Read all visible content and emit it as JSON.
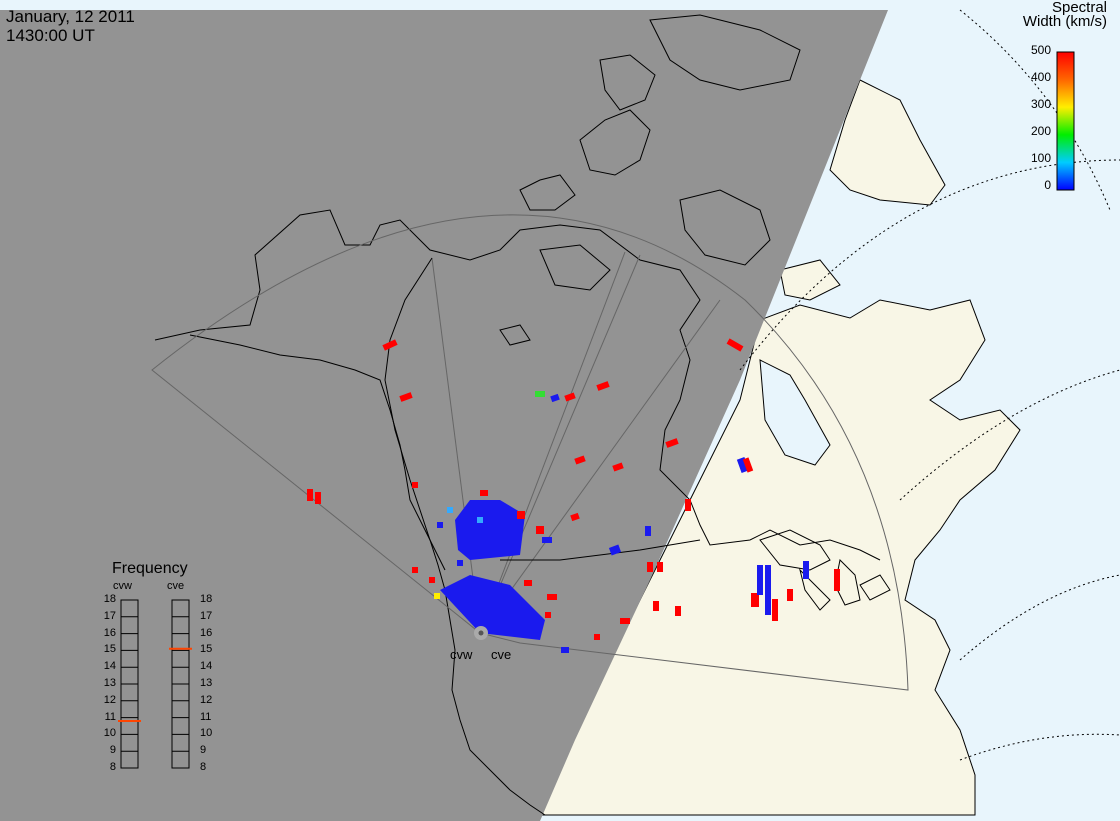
{
  "header": {
    "date": "January, 12 2011",
    "time": "1430:00 UT"
  },
  "colorbar": {
    "title_line1": "Spectral",
    "title_line2": "Width (km/s)",
    "ticks": [
      "500",
      "400",
      "300",
      "200",
      "100",
      "0"
    ],
    "min": 0,
    "max": 500,
    "colors": [
      "#0000ff",
      "#00ccff",
      "#00ee00",
      "#ffee00",
      "#ff6600",
      "#ff0000"
    ]
  },
  "radars": [
    {
      "code": "cvw",
      "frequency_mhz": 10.8
    },
    {
      "code": "cve",
      "frequency_mhz": 15.1
    }
  ],
  "frequency_panel": {
    "title": "Frequency",
    "left_label": "cvw",
    "right_label": "cve",
    "ticks": [
      "18",
      "17",
      "16",
      "15",
      "14",
      "13",
      "12",
      "11",
      "10",
      "9",
      "8"
    ],
    "min": 8,
    "max": 18,
    "marker_color": "#ff4400"
  },
  "map_colors": {
    "night": "#939393",
    "day_land": "#f8f6e6",
    "day_ocean": "#e8f5fc",
    "fov_line": "#666666"
  }
}
